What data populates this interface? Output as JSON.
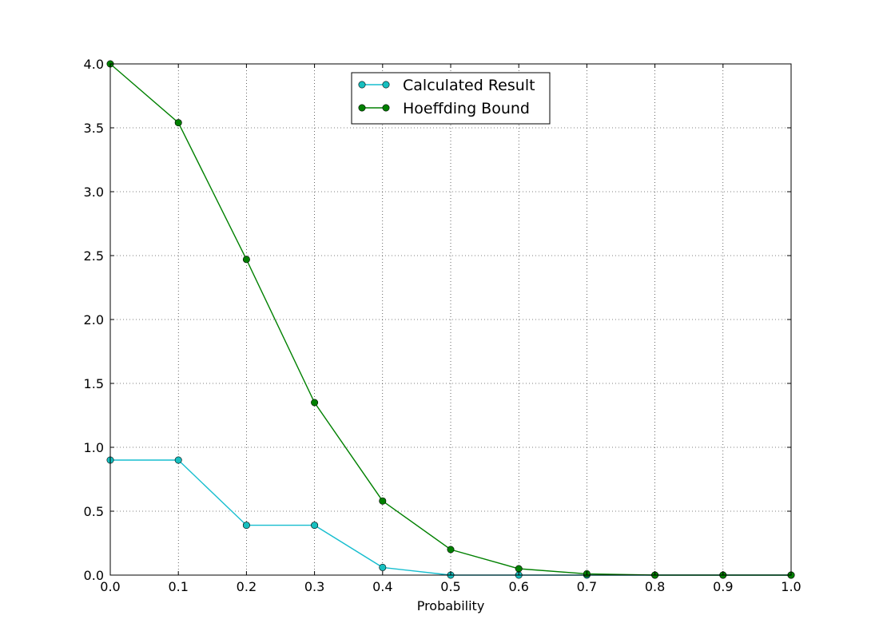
{
  "chart_data": {
    "type": "line",
    "title": "",
    "xlabel": "Probability",
    "ylabel": "",
    "xlim": [
      0.0,
      1.0
    ],
    "ylim": [
      0.0,
      4.0
    ],
    "grid": true,
    "legend_position": "top-center",
    "x_ticks": [
      "0.0",
      "0.1",
      "0.2",
      "0.3",
      "0.4",
      "0.5",
      "0.6",
      "0.7",
      "0.8",
      "0.9",
      "1.0"
    ],
    "y_ticks": [
      "0.0",
      "0.5",
      "1.0",
      "1.5",
      "2.0",
      "2.5",
      "3.0",
      "3.5",
      "4.0"
    ],
    "x": [
      0.0,
      0.1,
      0.2,
      0.3,
      0.4,
      0.5,
      0.6,
      0.7,
      0.8,
      0.9,
      1.0
    ],
    "series": [
      {
        "name": "Calculated Result",
        "color": "#17becf",
        "marker_color": "#17bfbf",
        "values": [
          0.9,
          0.9,
          0.39,
          0.39,
          0.06,
          0.0,
          0.0,
          0.0,
          0.0,
          0.0,
          0.0
        ]
      },
      {
        "name": "Hoeffding Bound",
        "color": "#008000",
        "marker_color": "#008000",
        "values": [
          4.0,
          3.54,
          2.47,
          1.35,
          0.58,
          0.2,
          0.05,
          0.01,
          0.0,
          0.0,
          0.0
        ]
      }
    ]
  }
}
